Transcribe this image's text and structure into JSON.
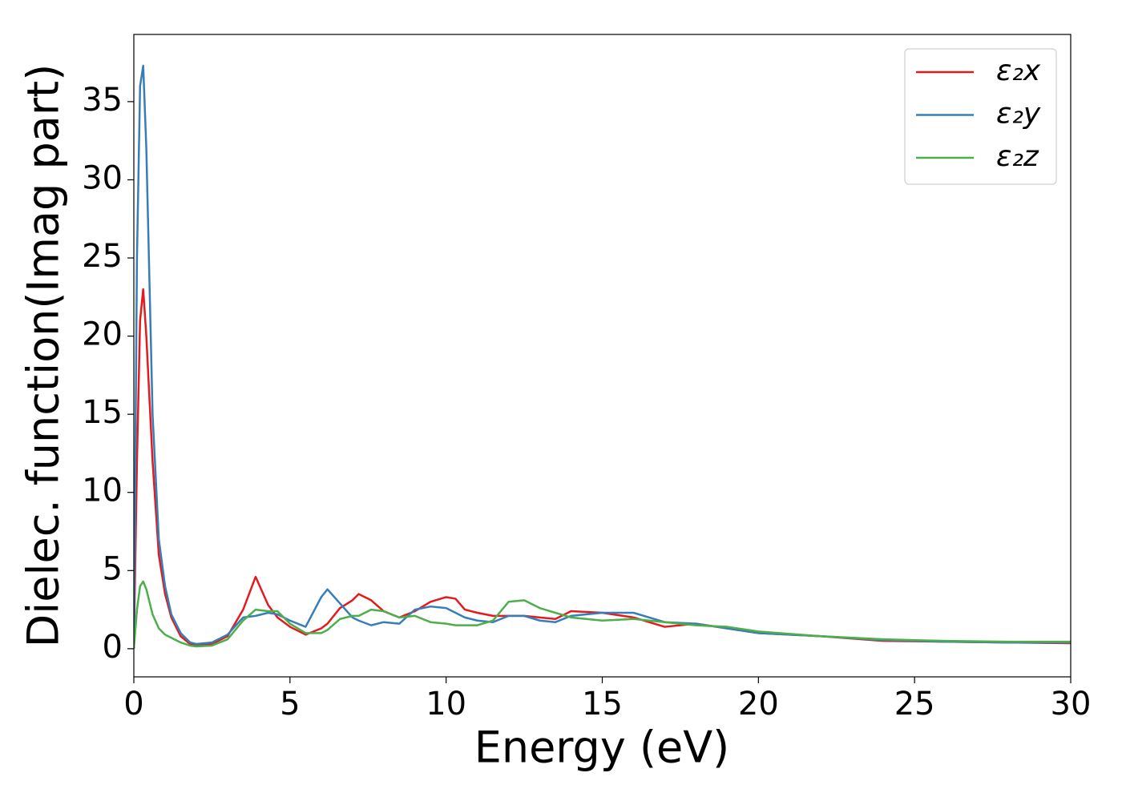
{
  "chart_data": {
    "type": "line",
    "xlabel": "Energy (eV)",
    "ylabel": "Dielec. function(Imag part)",
    "x": [
      0,
      0.1,
      0.2,
      0.3,
      0.4,
      0.6,
      0.8,
      1.0,
      1.2,
      1.5,
      1.8,
      2.0,
      2.5,
      3.0,
      3.5,
      3.9,
      4.3,
      4.6,
      5.0,
      5.5,
      6.0,
      6.2,
      6.6,
      7.0,
      7.2,
      7.6,
      8.0,
      8.5,
      9.0,
      9.5,
      10.0,
      10.3,
      10.6,
      11.0,
      11.5,
      12.0,
      12.5,
      13.0,
      13.5,
      14.0,
      15.0,
      16.0,
      17.0,
      18.0,
      19.0,
      20.0,
      22.0,
      24.0,
      26.0,
      28.0,
      30.0
    ],
    "series": [
      {
        "name": "ε₂x",
        "color": "#e41a1c",
        "values": [
          0,
          12,
          21,
          23,
          20,
          12,
          6,
          3.5,
          2,
          0.8,
          0.3,
          0.25,
          0.3,
          0.8,
          2.5,
          4.6,
          2.8,
          2,
          1.4,
          0.9,
          1.3,
          1.6,
          2.6,
          3.1,
          3.5,
          3.1,
          2.4,
          2.0,
          2.4,
          3.0,
          3.3,
          3.2,
          2.5,
          2.3,
          2.1,
          2.1,
          2.1,
          2.0,
          1.9,
          2.4,
          2.3,
          2.0,
          1.4,
          1.6,
          1.3,
          1.0,
          0.8,
          0.5,
          0.45,
          0.4,
          0.35
        ]
      },
      {
        "name": "ε₂y",
        "color": "#377eb8",
        "values": [
          0,
          25,
          36,
          37.3,
          32,
          15,
          7,
          4,
          2.2,
          1.0,
          0.4,
          0.3,
          0.4,
          0.9,
          2.0,
          2.1,
          2.3,
          2.2,
          1.8,
          1.4,
          3.3,
          3.8,
          2.9,
          2.0,
          1.8,
          1.5,
          1.7,
          1.6,
          2.5,
          2.7,
          2.6,
          2.3,
          2.0,
          1.8,
          1.7,
          2.1,
          2.1,
          1.8,
          1.7,
          2.1,
          2.3,
          2.3,
          1.7,
          1.6,
          1.3,
          1.0,
          0.8,
          0.55,
          0.45,
          0.4,
          0.4
        ]
      },
      {
        "name": "ε₂z",
        "color": "#4daf4a",
        "values": [
          0,
          2.5,
          4.0,
          4.3,
          3.8,
          2.2,
          1.3,
          0.9,
          0.7,
          0.4,
          0.2,
          0.15,
          0.2,
          0.6,
          1.8,
          2.5,
          2.4,
          2.4,
          1.6,
          1.0,
          1.0,
          1.2,
          1.9,
          2.1,
          2.1,
          2.5,
          2.4,
          2.0,
          2.1,
          1.7,
          1.6,
          1.5,
          1.5,
          1.5,
          1.8,
          3.0,
          3.1,
          2.6,
          2.3,
          2.0,
          1.8,
          1.9,
          1.7,
          1.5,
          1.4,
          1.1,
          0.8,
          0.6,
          0.5,
          0.45,
          0.45
        ]
      }
    ],
    "xlim": [
      0,
      30
    ],
    "xticks": [
      0,
      5,
      10,
      15,
      20,
      25,
      30
    ],
    "ylim": [
      -1.8,
      39.3
    ],
    "yticks": [
      0,
      5,
      10,
      15,
      20,
      25,
      30,
      35
    ],
    "grid": false,
    "legend": "upper right"
  }
}
